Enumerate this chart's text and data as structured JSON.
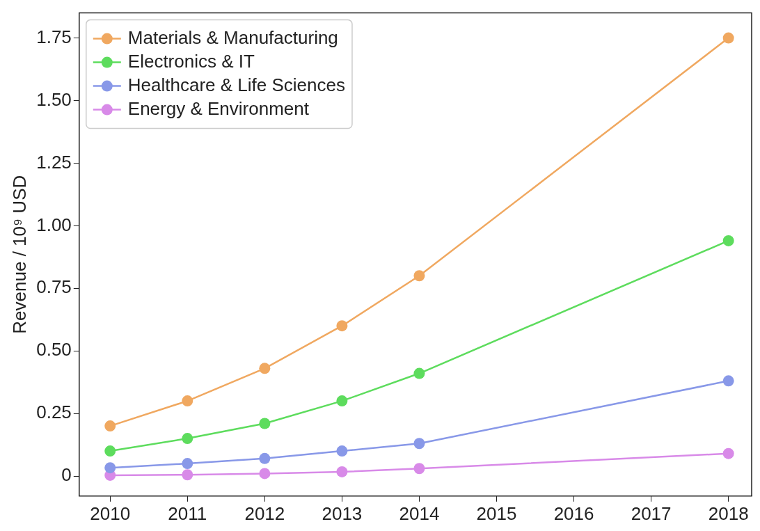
{
  "chart_data": {
    "type": "line",
    "ylabel": "Revenue / 10⁹ USD",
    "x": [
      2010,
      2011,
      2012,
      2013,
      2014,
      2018
    ],
    "series": [
      {
        "name": "Materials & Manufacturing",
        "color": "#f0a860",
        "values": [
          0.2,
          0.3,
          0.43,
          0.6,
          0.8,
          1.75
        ]
      },
      {
        "name": "Electronics & IT",
        "color": "#5ddc5d",
        "values": [
          0.1,
          0.15,
          0.21,
          0.3,
          0.41,
          0.94
        ]
      },
      {
        "name": "Healthcare & Life Sciences",
        "color": "#8898e8",
        "values": [
          0.033,
          0.05,
          0.07,
          0.1,
          0.13,
          0.38
        ]
      },
      {
        "name": "Energy & Environment",
        "color": "#d88ae8",
        "values": [
          0.003,
          0.005,
          0.01,
          0.017,
          0.03,
          0.09
        ]
      }
    ],
    "xlim": [
      2009.6,
      2018.3
    ],
    "xticks": [
      2010,
      2011,
      2012,
      2013,
      2014,
      2015,
      2016,
      2017,
      2018
    ],
    "ylim": [
      -0.08,
      1.85
    ],
    "yticks": [
      0,
      0.25,
      {
        "value": 0.5,
        "label": "0.50"
      },
      0.75,
      {
        "value": 1,
        "label": "1.00"
      },
      1.25,
      {
        "value": 1.5,
        "label": "1.50"
      },
      1.75
    ],
    "grid": false,
    "legend": "top left",
    "marker": "circle",
    "line_style": "solid"
  }
}
